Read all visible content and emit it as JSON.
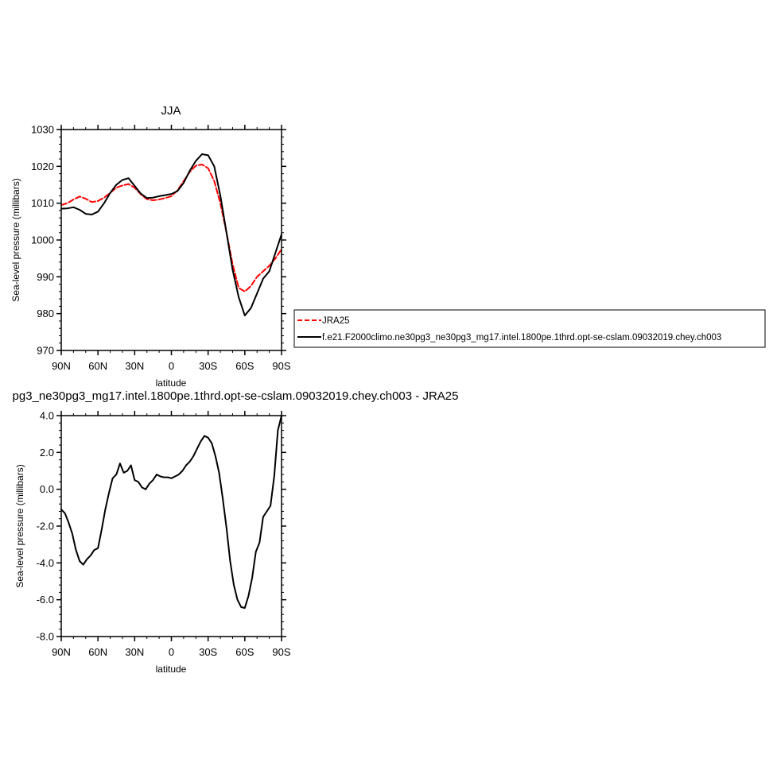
{
  "chart_data": [
    {
      "type": "line",
      "title": "JJA",
      "xlabel": "latitude",
      "ylabel": "Sea-level pressure (millibars)",
      "xlim": [
        90,
        -90
      ],
      "ylim": [
        970,
        1030
      ],
      "yticks": [
        "970",
        "980",
        "990",
        "1000",
        "1010",
        "1020",
        "1030"
      ],
      "xticks": [
        "90N",
        "60N",
        "30N",
        "0",
        "30S",
        "60S",
        "90S"
      ],
      "grid": false,
      "legend": "right, outside plot",
      "series": [
        {
          "name": "JRA25",
          "color": "#ff0000",
          "dash": true,
          "x": [
            90,
            85,
            80,
            75,
            70,
            65,
            60,
            55,
            50,
            45,
            40,
            35,
            30,
            25,
            20,
            15,
            10,
            5,
            0,
            -5,
            -10,
            -15,
            -20,
            -25,
            -30,
            -35,
            -40,
            -45,
            -50,
            -55,
            -60,
            -65,
            -70,
            -75,
            -80,
            -85,
            -90
          ],
          "y": [
            1009.5,
            1010,
            1011,
            1011.8,
            1011.2,
            1010.3,
            1010.6,
            1011.5,
            1012.8,
            1014.2,
            1014.8,
            1015.2,
            1014.2,
            1012.4,
            1011.1,
            1010.8,
            1011,
            1011.4,
            1011.9,
            1013.5,
            1016,
            1018.5,
            1020.2,
            1020.5,
            1019.5,
            1016,
            1010,
            1002,
            993.5,
            987,
            986,
            987.5,
            990,
            991.5,
            993,
            995,
            997.5
          ]
        },
        {
          "name": "f.e21.F2000climo.ne30pg3_ne30pg3_mg17.intel.1800pe.1thrd.opt-se-cslam.09032019.chey.ch003",
          "color": "#000000",
          "dash": false,
          "x": [
            90,
            85,
            80,
            75,
            70,
            65,
            60,
            55,
            50,
            45,
            40,
            35,
            30,
            25,
            20,
            15,
            10,
            5,
            0,
            -5,
            -10,
            -15,
            -20,
            -25,
            -30,
            -35,
            -40,
            -45,
            -50,
            -55,
            -60,
            -65,
            -70,
            -75,
            -80,
            -85,
            -90
          ],
          "y": [
            1008.5,
            1008.6,
            1008.9,
            1008.2,
            1007.1,
            1006.9,
            1007.7,
            1010,
            1012.8,
            1015,
            1016.3,
            1016.8,
            1014.7,
            1012.6,
            1011.4,
            1011.5,
            1011.9,
            1012.2,
            1012.5,
            1013.3,
            1015.5,
            1018.8,
            1021.5,
            1023.3,
            1023,
            1020,
            1012,
            1002,
            992,
            984.5,
            979.5,
            981.5,
            985.5,
            989.5,
            991.5,
            996.5,
            1001.5
          ]
        }
      ]
    },
    {
      "type": "line",
      "title": "pg3_ne30pg3_mg17.intel.1800pe.1thrd.opt-se-cslam.09032019.chey.ch003 - JRA25",
      "xlabel": "latitude",
      "ylabel": "Sea-level pressure (millibars)",
      "xlim": [
        90,
        -90
      ],
      "ylim": [
        -8,
        4
      ],
      "yticks": [
        "-8.0",
        "-6.0",
        "-4.0",
        "-2.0",
        "0.0",
        "2.0",
        "4.0"
      ],
      "xticks": [
        "90N",
        "60N",
        "30N",
        "0",
        "30S",
        "60S",
        "90S"
      ],
      "grid": false,
      "series": [
        {
          "color": "#000000",
          "x": [
            90,
            87,
            84,
            81,
            78,
            75,
            72,
            69,
            66,
            63,
            60,
            57,
            54,
            51,
            48,
            45,
            42,
            39,
            36,
            33,
            30,
            27,
            24,
            21,
            18,
            15,
            12,
            9,
            6,
            3,
            0,
            -3,
            -6,
            -9,
            -12,
            -15,
            -18,
            -21,
            -24,
            -27,
            -30,
            -33,
            -36,
            -39,
            -42,
            -45,
            -48,
            -51,
            -54,
            -57,
            -60,
            -63,
            -66,
            -69,
            -72,
            -75,
            -78,
            -81,
            -84,
            -87,
            -90
          ],
          "y": [
            -1.1,
            -1.3,
            -1.8,
            -2.4,
            -3.3,
            -3.9,
            -4.1,
            -3.8,
            -3.6,
            -3.3,
            -3.2,
            -2.2,
            -1.1,
            -0.2,
            0.6,
            0.8,
            1.4,
            0.9,
            1.0,
            1.3,
            0.5,
            0.4,
            0.1,
            0.0,
            0.3,
            0.5,
            0.8,
            0.7,
            0.65,
            0.65,
            0.6,
            0.7,
            0.8,
            1.0,
            1.3,
            1.5,
            1.8,
            2.2,
            2.6,
            2.9,
            2.8,
            2.5,
            1.8,
            0.9,
            -0.5,
            -2.1,
            -3.9,
            -5.2,
            -6.0,
            -6.4,
            -6.45,
            -5.8,
            -4.8,
            -3.4,
            -2.9,
            -1.5,
            -1.2,
            -0.9,
            0.7,
            3.2,
            4.0
          ]
        }
      ]
    }
  ]
}
